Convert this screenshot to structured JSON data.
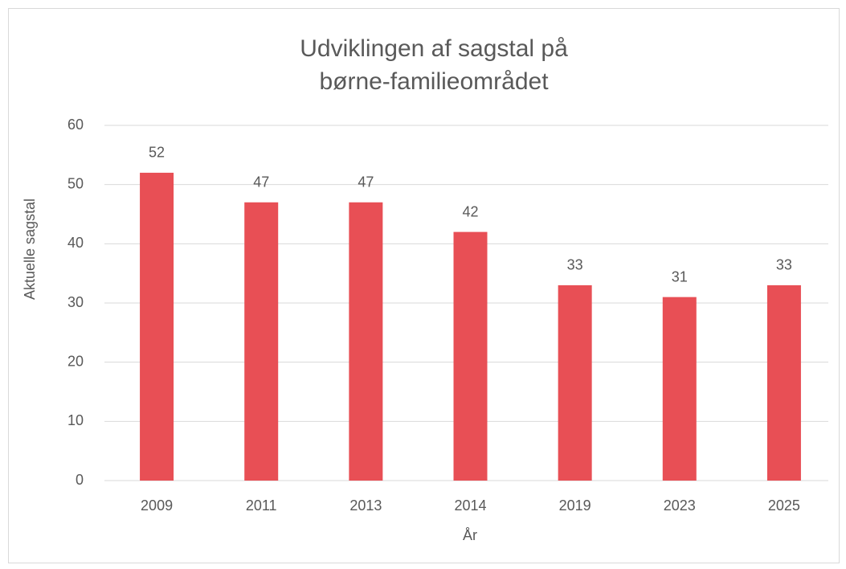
{
  "chart_data": {
    "type": "bar",
    "title": [
      "Udviklingen af sagstal på",
      "børne-familieområdet"
    ],
    "x_label": "År",
    "y_label": "Aktuelle sagstal",
    "categories": [
      "2009",
      "2011",
      "2013",
      "2014",
      "2019",
      "2023",
      "2025"
    ],
    "values": [
      52,
      47,
      47,
      42,
      33,
      31,
      33
    ],
    "color": "#e84f55",
    "ylim": [
      0,
      60
    ],
    "yticks": [
      0,
      10,
      20,
      30,
      40,
      50,
      60
    ],
    "grid": true
  }
}
